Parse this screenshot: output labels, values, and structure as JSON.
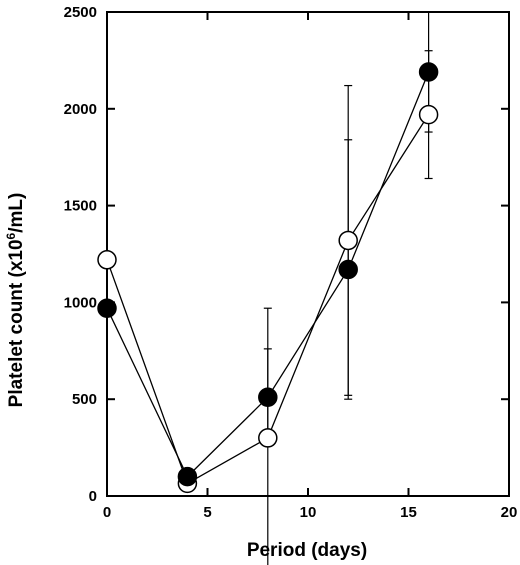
{
  "chart_data": {
    "type": "line",
    "xlabel": "Period (days)",
    "ylabel_prefix": "Platelet count (x10",
    "ylabel_exp": "6",
    "ylabel_suffix": "/mL)",
    "xlim": [
      0,
      20
    ],
    "ylim": [
      0,
      2500
    ],
    "xticks": [
      0,
      5,
      10,
      15,
      20
    ],
    "yticks": [
      0,
      500,
      1000,
      1500,
      2000,
      2500
    ],
    "grid": false,
    "series": [
      {
        "marker": "filled-circle",
        "color": "#000000",
        "points": [
          {
            "x": 0,
            "y": 970,
            "err": null
          },
          {
            "x": 4,
            "y": 100,
            "err": null
          },
          {
            "x": 8,
            "y": 510,
            "err": 250
          },
          {
            "x": 12,
            "y": 1170,
            "err": 670
          },
          {
            "x": 16,
            "y": 2190,
            "err": 310
          }
        ]
      },
      {
        "marker": "open-circle",
        "color": "#ffffff",
        "points": [
          {
            "x": 0,
            "y": 1220,
            "err": null
          },
          {
            "x": 4,
            "y": 65,
            "err": null
          },
          {
            "x": 8,
            "y": 300,
            "err": 670
          },
          {
            "x": 12,
            "y": 1320,
            "err": 800
          },
          {
            "x": 16,
            "y": 1970,
            "err": 330
          }
        ]
      }
    ]
  }
}
